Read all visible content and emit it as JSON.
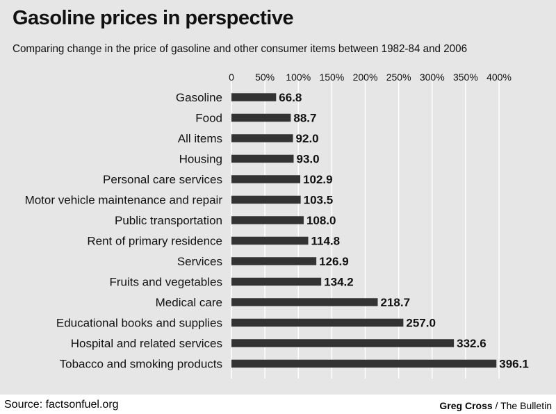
{
  "header": {
    "title": "Gasoline prices in perspective",
    "subtitle": "Comparing change in the price of gasoline and other consumer items between 1982-84 and 2006"
  },
  "footer": {
    "source": "Source: factsonfuel.org",
    "credit_name": "Greg Cross",
    "credit_sep": " / ",
    "credit_org": "The Bulletin"
  },
  "chart_data": {
    "type": "bar",
    "orientation": "horizontal",
    "title": "Gasoline prices in perspective",
    "subtitle": "Comparing change in the price of gasoline and other consumer items between 1982-84 and 2006",
    "xlabel": "",
    "ylabel": "",
    "xlim": [
      0,
      400
    ],
    "ticks": [
      0,
      50,
      100,
      150,
      200,
      250,
      300,
      350,
      400
    ],
    "tick_labels": [
      "0",
      "50%",
      "100%",
      "150%",
      "200%",
      "250%",
      "300%",
      "350%",
      "400%"
    ],
    "axis_position": "top",
    "grid": true,
    "categories": [
      "Gasoline",
      "Food",
      "All items",
      "Housing",
      "Personal care services",
      "Motor vehicle maintenance and repair",
      "Public transportation",
      "Rent of primary residence",
      "Services",
      "Fruits and vegetables",
      "Medical care",
      "Educational books and supplies",
      "Hospital and related services",
      "Tobacco and smoking products"
    ],
    "values": [
      66.8,
      88.7,
      92.0,
      93.0,
      102.9,
      103.5,
      108.0,
      114.8,
      126.9,
      134.2,
      218.7,
      257.0,
      332.6,
      396.1
    ],
    "value_labels": [
      "66.8",
      "88.7",
      "92.0",
      "93.0",
      "102.9",
      "103.5",
      "108.0",
      "114.8",
      "126.9",
      "134.2",
      "218.7",
      "257.0",
      "332.6",
      "396.1"
    ],
    "colors": {
      "bar": "#333333",
      "grid": "#ffffff",
      "background": "#e6e6e6",
      "text": "#111111"
    }
  }
}
